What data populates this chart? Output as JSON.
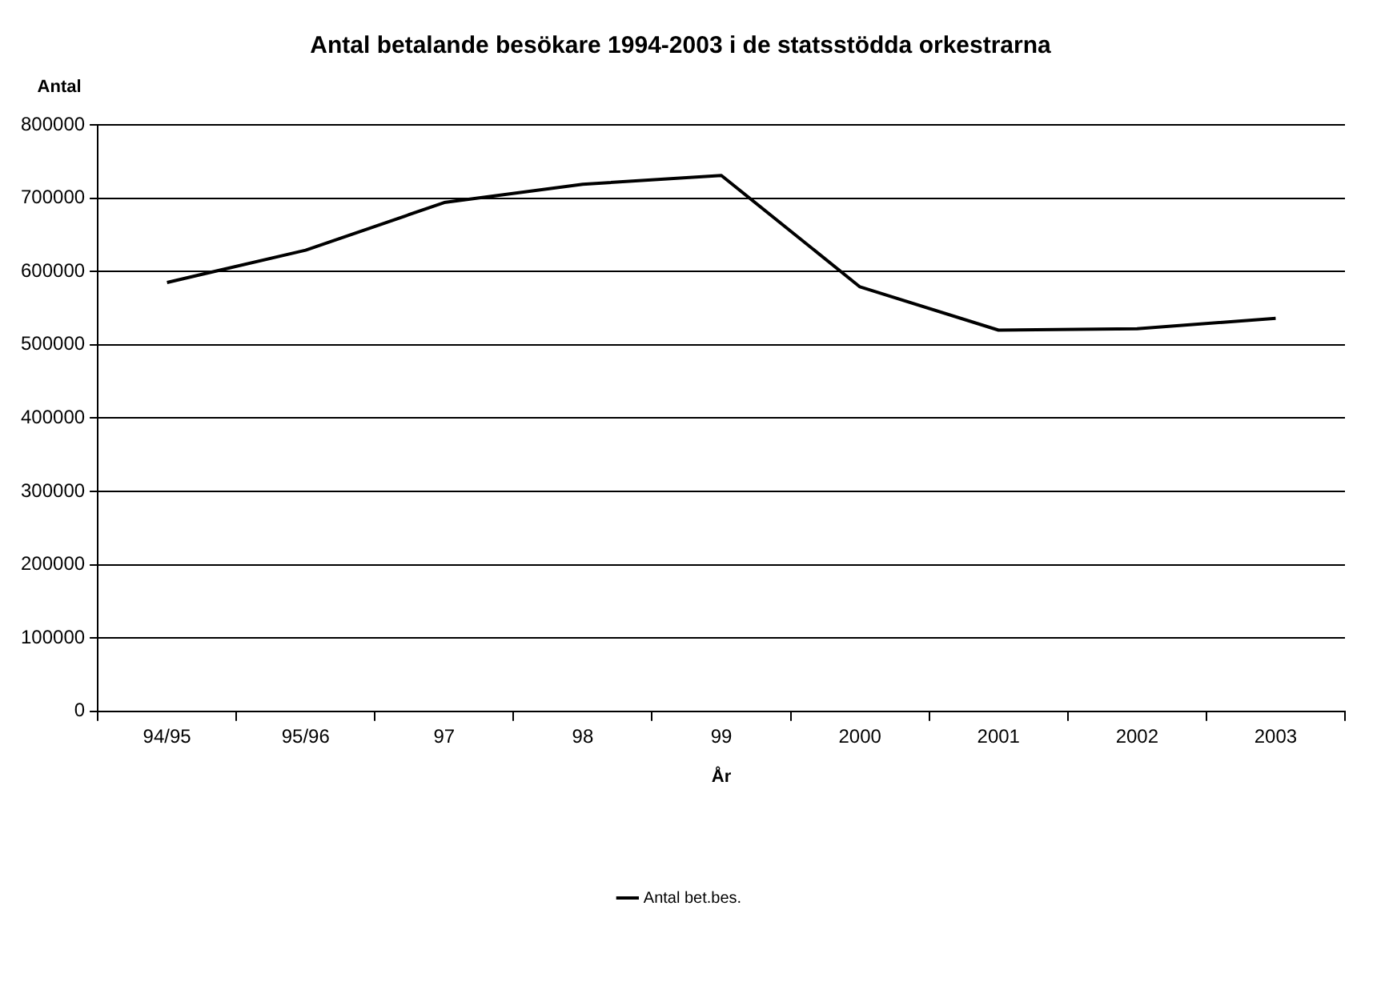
{
  "chart_data": {
    "type": "line",
    "title": "Antal betalande besökare 1994-2003 i de statsstödda orkestrarna",
    "xlabel": "År",
    "ylabel": "Antal",
    "categories": [
      "94/95",
      "95/96",
      "97",
      "98",
      "99",
      "2000",
      "2001",
      "2002",
      "2003"
    ],
    "series": [
      {
        "name": "Antal bet.bes.",
        "color": "#000000",
        "values": [
          585000,
          629000,
          694000,
          719000,
          731000,
          579000,
          520000,
          522000,
          536000
        ]
      }
    ],
    "ylim": [
      0,
      800000
    ],
    "yticks": [
      0,
      100000,
      200000,
      300000,
      400000,
      500000,
      600000,
      700000,
      800000
    ],
    "grid": "y",
    "legend": "bottom",
    "marker": "none",
    "line_style": "solid"
  }
}
